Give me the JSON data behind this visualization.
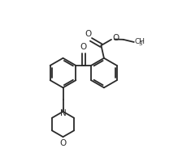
{
  "background": "#ffffff",
  "line_color": "#2a2a2a",
  "lw": 1.3,
  "figsize": [
    2.35,
    1.94
  ],
  "dpi": 100,
  "xlim": [
    -0.05,
    1.05
  ],
  "ylim": [
    -0.08,
    1.02
  ],
  "ring_r": 0.105
}
